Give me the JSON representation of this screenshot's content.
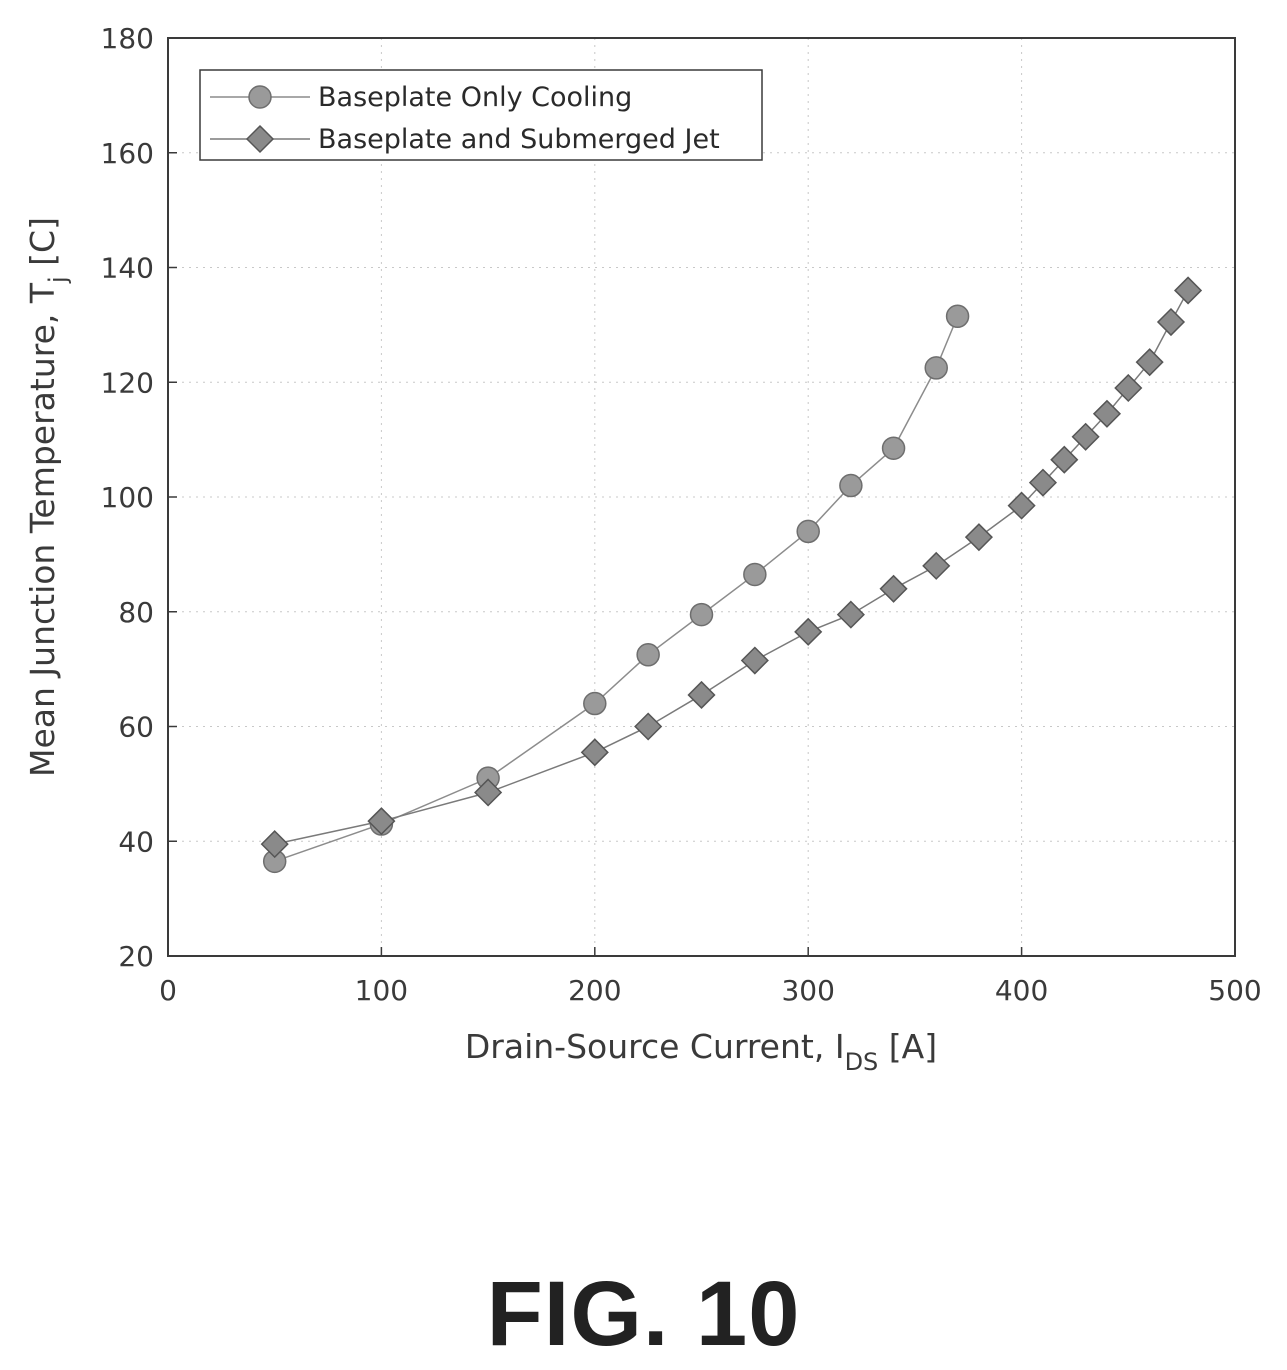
{
  "chart_data": {
    "type": "line",
    "xlabel": "Drain-Source Current, I",
    "xlabel_sub": "DS",
    "xlabel_unit": " [A]",
    "ylabel": "Mean Junction Temperature, T",
    "ylabel_sub": "j",
    "ylabel_unit": " [C]",
    "xlim": [
      0,
      500
    ],
    "ylim": [
      20,
      180
    ],
    "xticks": [
      0,
      100,
      200,
      300,
      400,
      500
    ],
    "yticks": [
      20,
      40,
      60,
      80,
      100,
      120,
      140,
      160,
      180
    ],
    "grid": true,
    "legend_position": "top-left",
    "series": [
      {
        "name": "Baseplate Only Cooling",
        "marker": "circle",
        "color": "#8c8c8c",
        "x": [
          50,
          100,
          150,
          200,
          225,
          250,
          275,
          300,
          320,
          340,
          360,
          370
        ],
        "y": [
          36.5,
          43,
          51,
          64,
          72.5,
          79.5,
          86.5,
          94,
          102,
          108.5,
          122.5,
          131.5
        ]
      },
      {
        "name": "Baseplate and Submerged Jet",
        "marker": "diamond",
        "color": "#7a7a7a",
        "x": [
          50,
          100,
          150,
          200,
          225,
          250,
          275,
          300,
          320,
          340,
          360,
          380,
          400,
          410,
          420,
          430,
          440,
          450,
          460,
          470,
          478
        ],
        "y": [
          39.5,
          43.5,
          48.5,
          55.5,
          60,
          65.5,
          71.5,
          76.5,
          79.5,
          84,
          88,
          93,
          98.5,
          102.5,
          106.5,
          110.5,
          114.5,
          119,
          123.5,
          130.5,
          136
        ]
      }
    ]
  },
  "figure_label": "FIG. 10"
}
